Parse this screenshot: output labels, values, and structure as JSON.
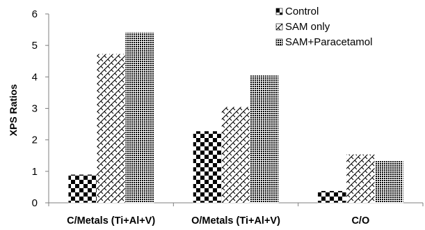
{
  "chart_data": {
    "type": "bar",
    "ylabel": "XPS Ratios",
    "xlabel": "",
    "ylim": [
      0,
      6
    ],
    "yticks": [
      0,
      1,
      2,
      3,
      4,
      5,
      6
    ],
    "grid": false,
    "legend_position": "top-right",
    "categories": [
      "C/Metals (Ti+Al+V)",
      "O/Metals (Ti+Al+V)",
      "C/O"
    ],
    "series": [
      {
        "name": "Control",
        "pattern": "checkerboard",
        "values": [
          0.9,
          2.28,
          0.38
        ]
      },
      {
        "name": "SAM only",
        "pattern": "diagonal-crosshatch",
        "values": [
          4.73,
          3.05,
          1.54
        ]
      },
      {
        "name": "SAM+Paracetamol",
        "pattern": "dense-dots",
        "values": [
          5.42,
          4.05,
          1.33
        ]
      }
    ]
  }
}
